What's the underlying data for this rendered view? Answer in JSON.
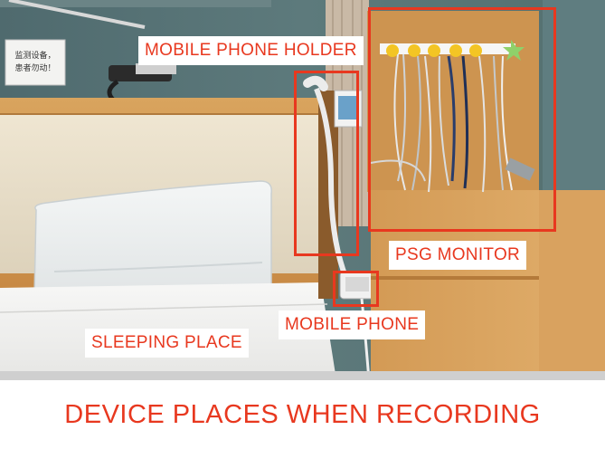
{
  "notice_text": {
    "line1": "监测设备，",
    "line2": "患者勿动！"
  },
  "labels": {
    "phone_holder": "MOBILE PHONE HOLDER",
    "psg_monitor": "PSG MONITOR",
    "mobile_phone": "MOBILE PHONE",
    "sleeping_place": "SLEEPING PLACE"
  },
  "caption": "DEVICE PLACES WHEN RECORDING",
  "colors": {
    "annotation": "#e8381f"
  }
}
